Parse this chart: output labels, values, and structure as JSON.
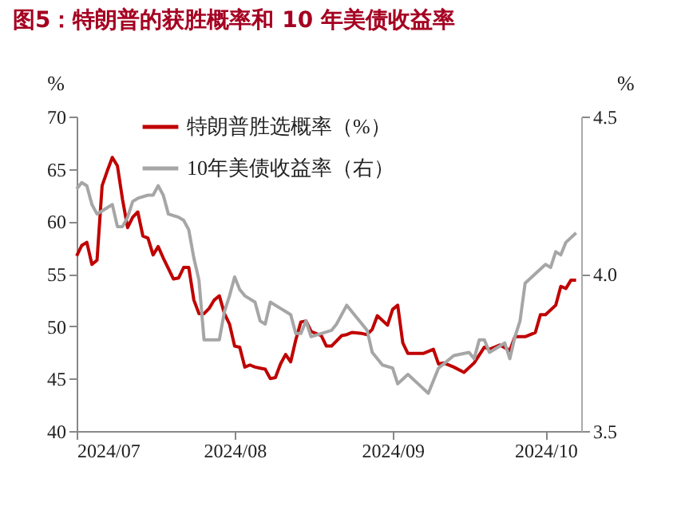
{
  "chart_data": {
    "type": "line",
    "title": "图5：特朗普的获胜概率和 10 年美债收益率",
    "ylabel": "%",
    "y2label": "%",
    "xlim": [
      "2024-07-01",
      "2024-10-08"
    ],
    "xticks": [
      {
        "value": "2024-07-01",
        "label": "2024/07"
      },
      {
        "value": "2024-08-01",
        "label": "2024/08"
      },
      {
        "value": "2024-09-01",
        "label": "2024/09"
      },
      {
        "value": "2024-10-01",
        "label": "2024/10"
      }
    ],
    "ylim": [
      40,
      70
    ],
    "yticks": [
      40,
      45,
      50,
      55,
      60,
      65,
      70
    ],
    "y2lim": [
      3.5,
      4.5
    ],
    "y2ticks": [
      {
        "value": 3.5,
        "label": "3.5"
      },
      {
        "value": 4.0,
        "label": "4.0"
      },
      {
        "value": 4.5,
        "label": "4.5"
      }
    ],
    "grid": false,
    "legend": "top left",
    "marker": "none",
    "line_style": "solid",
    "series": [
      {
        "name": "特朗普胜选概率（%）",
        "color": "#c00000",
        "x": [
          "2024-07-01",
          "2024-07-02",
          "2024-07-03",
          "2024-07-04",
          "2024-07-05",
          "2024-07-06",
          "2024-07-07",
          "2024-07-08",
          "2024-07-09",
          "2024-07-10",
          "2024-07-11",
          "2024-07-12",
          "2024-07-13",
          "2024-07-14",
          "2024-07-15",
          "2024-07-16",
          "2024-07-17",
          "2024-07-18",
          "2024-07-19",
          "2024-07-20",
          "2024-07-21",
          "2024-07-22",
          "2024-07-23",
          "2024-07-24",
          "2024-07-25",
          "2024-07-26",
          "2024-07-27",
          "2024-07-28",
          "2024-07-29",
          "2024-07-30",
          "2024-07-31",
          "2024-08-01",
          "2024-08-02",
          "2024-08-03",
          "2024-08-04",
          "2024-08-05",
          "2024-08-06",
          "2024-08-07",
          "2024-08-08",
          "2024-08-09",
          "2024-08-10",
          "2024-08-11",
          "2024-08-12",
          "2024-08-13",
          "2024-08-14",
          "2024-08-15",
          "2024-08-16",
          "2024-08-17",
          "2024-08-18",
          "2024-08-19",
          "2024-08-20",
          "2024-08-21",
          "2024-08-22",
          "2024-08-23",
          "2024-08-24",
          "2024-08-26",
          "2024-08-27",
          "2024-08-28",
          "2024-08-29",
          "2024-08-31",
          "2024-09-01",
          "2024-09-02",
          "2024-09-03",
          "2024-09-04",
          "2024-09-07",
          "2024-09-09",
          "2024-09-10",
          "2024-09-11",
          "2024-09-13",
          "2024-09-15",
          "2024-09-17",
          "2024-09-19",
          "2024-09-20",
          "2024-09-22",
          "2024-09-24",
          "2024-09-25",
          "2024-09-27",
          "2024-09-29",
          "2024-09-30",
          "2024-10-01",
          "2024-10-03",
          "2024-10-04",
          "2024-10-05",
          "2024-10-06",
          "2024-10-07"
        ],
        "values": [
          56.7,
          57.7,
          58.0,
          55.9,
          56.3,
          63.4,
          64.8,
          66.1,
          65.3,
          62.1,
          59.4,
          60.4,
          60.9,
          58.6,
          58.4,
          56.8,
          57.6,
          56.5,
          55.5,
          54.5,
          54.6,
          55.6,
          55.6,
          52.5,
          51.2,
          51.2,
          51.7,
          52.5,
          52.9,
          51.2,
          50.2,
          48.1,
          48.0,
          46.1,
          46.3,
          46.1,
          46.0,
          45.9,
          45.0,
          45.1,
          46.4,
          47.3,
          46.6,
          48.7,
          50.4,
          50.5,
          49.5,
          49.3,
          49.1,
          48.1,
          48.1,
          48.6,
          49.1,
          49.2,
          49.4,
          49.3,
          49.2,
          49.7,
          51.0,
          50.1,
          51.6,
          52.0,
          48.4,
          47.4,
          47.4,
          47.8,
          46.4,
          46.5,
          46.1,
          45.6,
          46.5,
          48.0,
          47.8,
          48.2,
          47.7,
          49.0,
          49.0,
          49.4,
          51.1,
          51.1,
          52.0,
          53.8,
          53.6,
          54.4,
          54.4
        ]
      },
      {
        "name": "10年美债收益率（右）",
        "color": "#a6a6a6",
        "axis": "y2",
        "x": [
          "2024-07-01",
          "2024-07-02",
          "2024-07-03",
          "2024-07-04",
          "2024-07-05",
          "2024-07-06",
          "2024-07-07",
          "2024-07-08",
          "2024-07-09",
          "2024-07-10",
          "2024-07-11",
          "2024-07-12",
          "2024-07-13",
          "2024-07-15",
          "2024-07-16",
          "2024-07-17",
          "2024-07-18",
          "2024-07-19",
          "2024-07-21",
          "2024-07-22",
          "2024-07-23",
          "2024-07-24",
          "2024-07-25",
          "2024-07-26",
          "2024-07-29",
          "2024-07-30",
          "2024-07-31",
          "2024-08-01",
          "2024-08-02",
          "2024-08-03",
          "2024-08-05",
          "2024-08-06",
          "2024-08-07",
          "2024-08-08",
          "2024-08-10",
          "2024-08-11",
          "2024-08-12",
          "2024-08-13",
          "2024-08-14",
          "2024-08-15",
          "2024-08-16",
          "2024-08-20",
          "2024-08-21",
          "2024-08-23",
          "2024-08-25",
          "2024-08-26",
          "2024-08-27",
          "2024-08-28",
          "2024-08-30",
          "2024-09-01",
          "2024-09-02",
          "2024-09-04",
          "2024-09-06",
          "2024-09-08",
          "2024-09-10",
          "2024-09-13",
          "2024-09-16",
          "2024-09-17",
          "2024-09-18",
          "2024-09-19",
          "2024-09-20",
          "2024-09-23",
          "2024-09-24",
          "2024-09-25",
          "2024-09-26",
          "2024-09-27",
          "2024-09-29",
          "2024-10-01",
          "2024-10-02",
          "2024-10-03",
          "2024-10-04",
          "2024-10-05",
          "2024-10-07"
        ],
        "values": [
          4.27,
          4.29,
          4.28,
          4.22,
          4.19,
          4.2,
          4.21,
          4.22,
          4.15,
          4.15,
          4.18,
          4.23,
          4.24,
          4.25,
          4.25,
          4.28,
          4.25,
          4.19,
          4.18,
          4.17,
          4.14,
          4.05,
          3.98,
          3.79,
          3.79,
          3.88,
          3.93,
          3.99,
          3.95,
          3.93,
          3.91,
          3.85,
          3.84,
          3.91,
          3.89,
          3.88,
          3.87,
          3.81,
          3.81,
          3.85,
          3.8,
          3.82,
          3.84,
          3.9,
          3.86,
          3.84,
          3.82,
          3.75,
          3.71,
          3.7,
          3.65,
          3.68,
          3.65,
          3.62,
          3.7,
          3.74,
          3.75,
          3.73,
          3.79,
          3.79,
          3.75,
          3.78,
          3.73,
          3.8,
          3.85,
          3.97,
          4.0,
          4.03,
          4.02,
          4.07,
          4.06,
          4.1,
          4.13
        ]
      }
    ]
  }
}
